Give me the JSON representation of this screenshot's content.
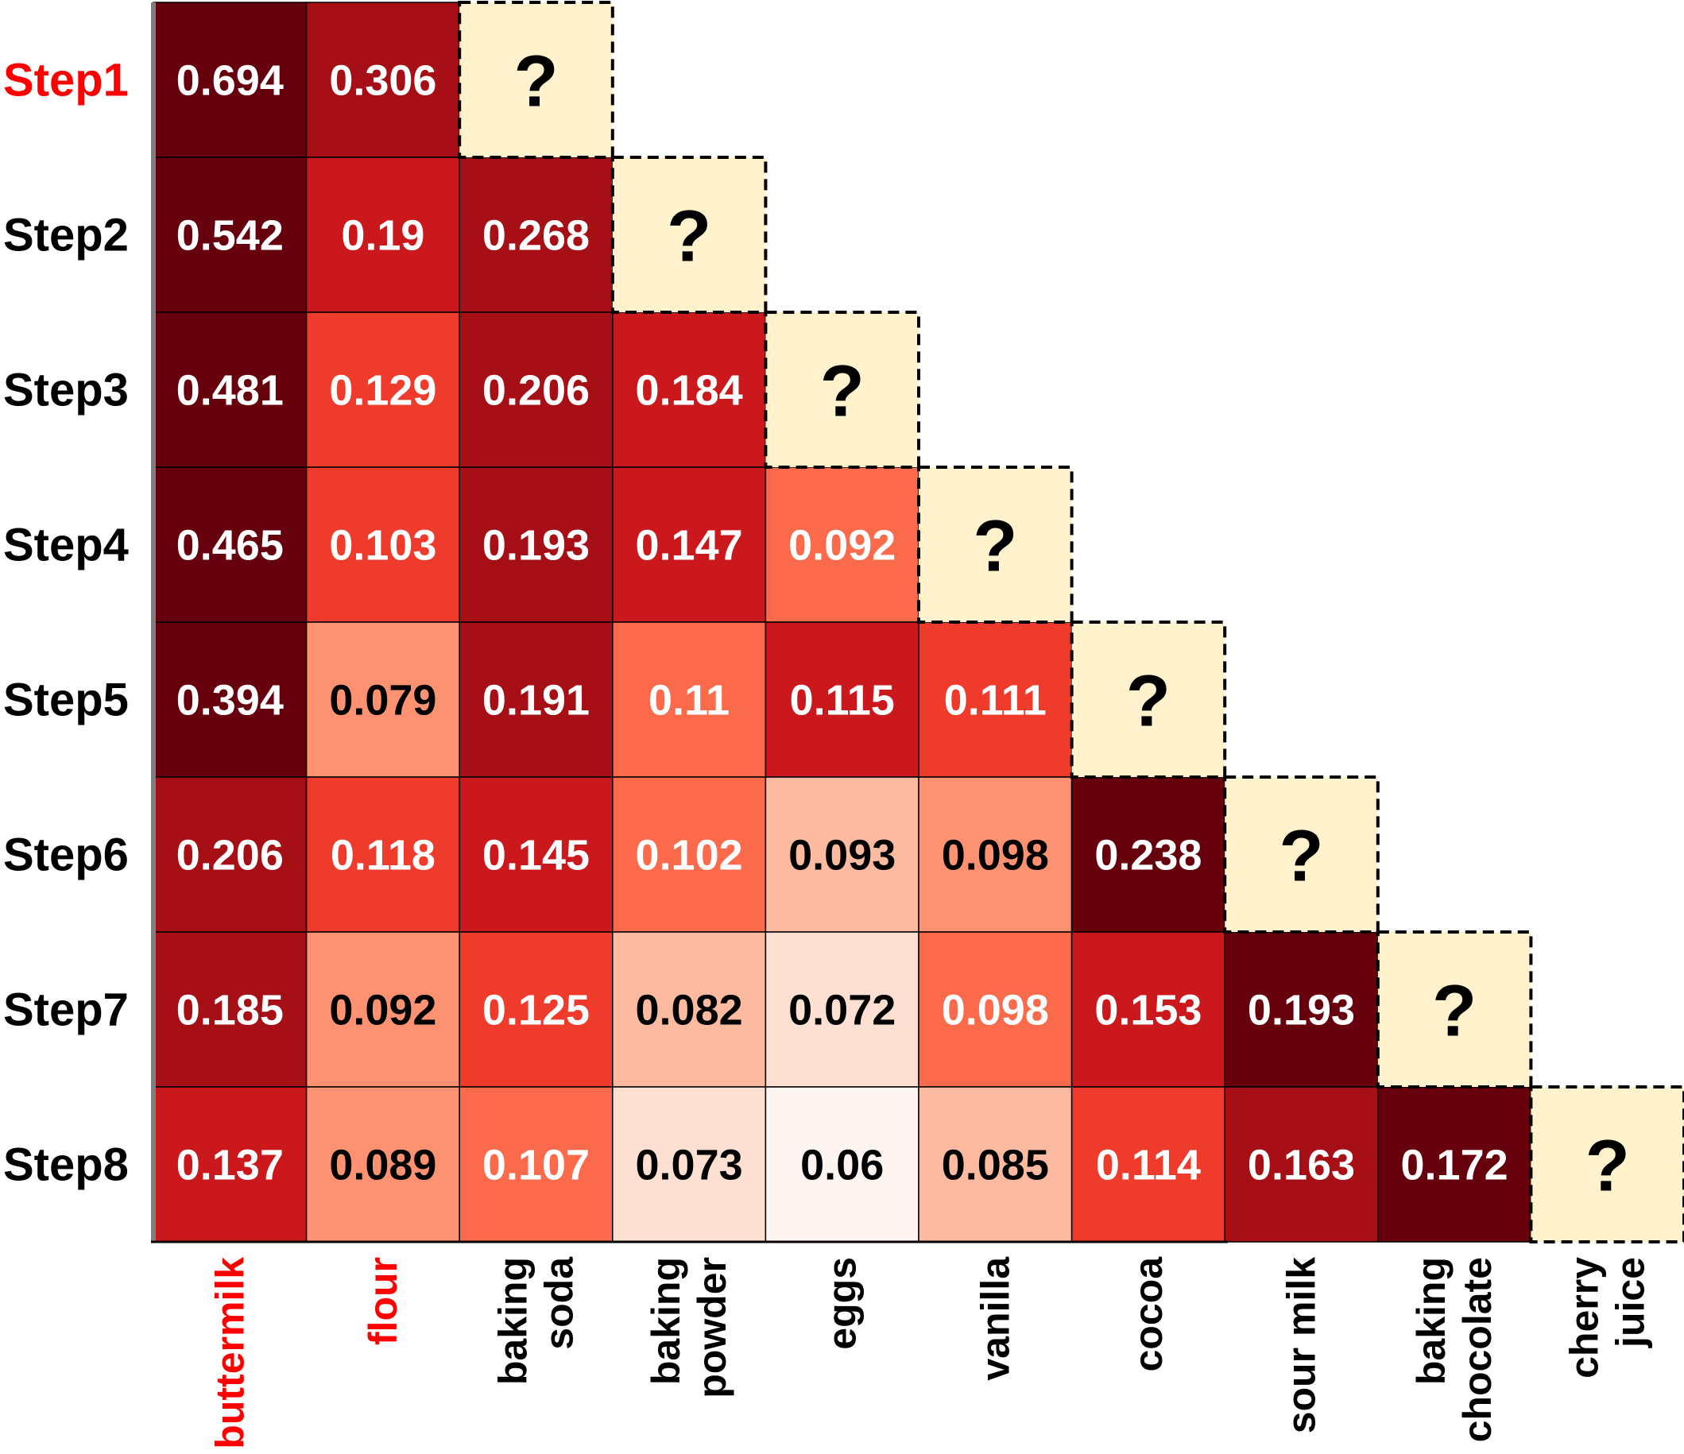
{
  "chart_data": {
    "type": "heatmap",
    "rows": [
      "Step1",
      "Step2",
      "Step3",
      "Step4",
      "Step5",
      "Step6",
      "Step7",
      "Step8"
    ],
    "columns": [
      [
        "buttermilk"
      ],
      [
        "flour"
      ],
      [
        "baking",
        "soda"
      ],
      [
        "baking",
        "powder"
      ],
      [
        "eggs"
      ],
      [
        "vanilla"
      ],
      [
        "cocoa"
      ],
      [
        "sour milk"
      ],
      [
        "baking",
        "chocolate"
      ],
      [
        "cherry",
        "juice"
      ]
    ],
    "highlighted_rows": [
      0
    ],
    "highlighted_columns": [
      0,
      1
    ],
    "highlight_color": "#ff0000",
    "unknown_marker": "?",
    "unknown_fill": "#fff2cc",
    "colormap": "Reds",
    "values": [
      [
        0.694,
        0.306
      ],
      [
        0.542,
        0.19,
        0.268
      ],
      [
        0.481,
        0.129,
        0.206,
        0.184
      ],
      [
        0.465,
        0.103,
        0.193,
        0.147,
        0.092
      ],
      [
        0.394,
        0.079,
        0.191,
        0.11,
        0.115,
        0.111
      ],
      [
        0.206,
        0.118,
        0.145,
        0.102,
        0.093,
        0.098,
        0.238
      ],
      [
        0.185,
        0.092,
        0.125,
        0.082,
        0.072,
        0.098,
        0.153,
        0.193
      ],
      [
        0.137,
        0.089,
        0.107,
        0.073,
        0.06,
        0.085,
        0.114,
        0.163,
        0.172
      ]
    ],
    "cell_colors": [
      [
        "#67000d",
        "#a50f15"
      ],
      [
        "#67000d",
        "#cb181d",
        "#a50f15"
      ],
      [
        "#67000d",
        "#ef3b2c",
        "#a50f15",
        "#cb181d"
      ],
      [
        "#67000d",
        "#ef3b2c",
        "#a50f15",
        "#cb181d",
        "#fb6a4a"
      ],
      [
        "#67000d",
        "#fc9272",
        "#a50f15",
        "#fb6a4a",
        "#cb181d",
        "#ef3b2c"
      ],
      [
        "#a50f15",
        "#ef3b2c",
        "#cb181d",
        "#fb6a4a",
        "#fcbba1",
        "#fc9272",
        "#67000d"
      ],
      [
        "#a50f15",
        "#fc9272",
        "#ef3b2c",
        "#fcbba1",
        "#fee0d2",
        "#fb6a4a",
        "#cb181d",
        "#67000d"
      ],
      [
        "#cb181d",
        "#fc9272",
        "#fb6a4a",
        "#fee0d2",
        "#fff5f0",
        "#fcbba1",
        "#ef3b2c",
        "#a50f15",
        "#67000d"
      ]
    ],
    "text_colors": [
      [
        "#ffffff",
        "#ffffff"
      ],
      [
        "#ffffff",
        "#ffffff",
        "#ffffff"
      ],
      [
        "#ffffff",
        "#ffffff",
        "#ffffff",
        "#ffffff"
      ],
      [
        "#ffffff",
        "#ffffff",
        "#ffffff",
        "#ffffff",
        "#ffffff"
      ],
      [
        "#ffffff",
        "#000000",
        "#ffffff",
        "#ffffff",
        "#ffffff",
        "#ffffff"
      ],
      [
        "#ffffff",
        "#ffffff",
        "#ffffff",
        "#ffffff",
        "#000000",
        "#000000",
        "#ffffff"
      ],
      [
        "#ffffff",
        "#000000",
        "#ffffff",
        "#000000",
        "#000000",
        "#ffffff",
        "#ffffff",
        "#ffffff"
      ],
      [
        "#ffffff",
        "#000000",
        "#ffffff",
        "#000000",
        "#000000",
        "#000000",
        "#ffffff",
        "#ffffff",
        "#ffffff"
      ]
    ]
  }
}
